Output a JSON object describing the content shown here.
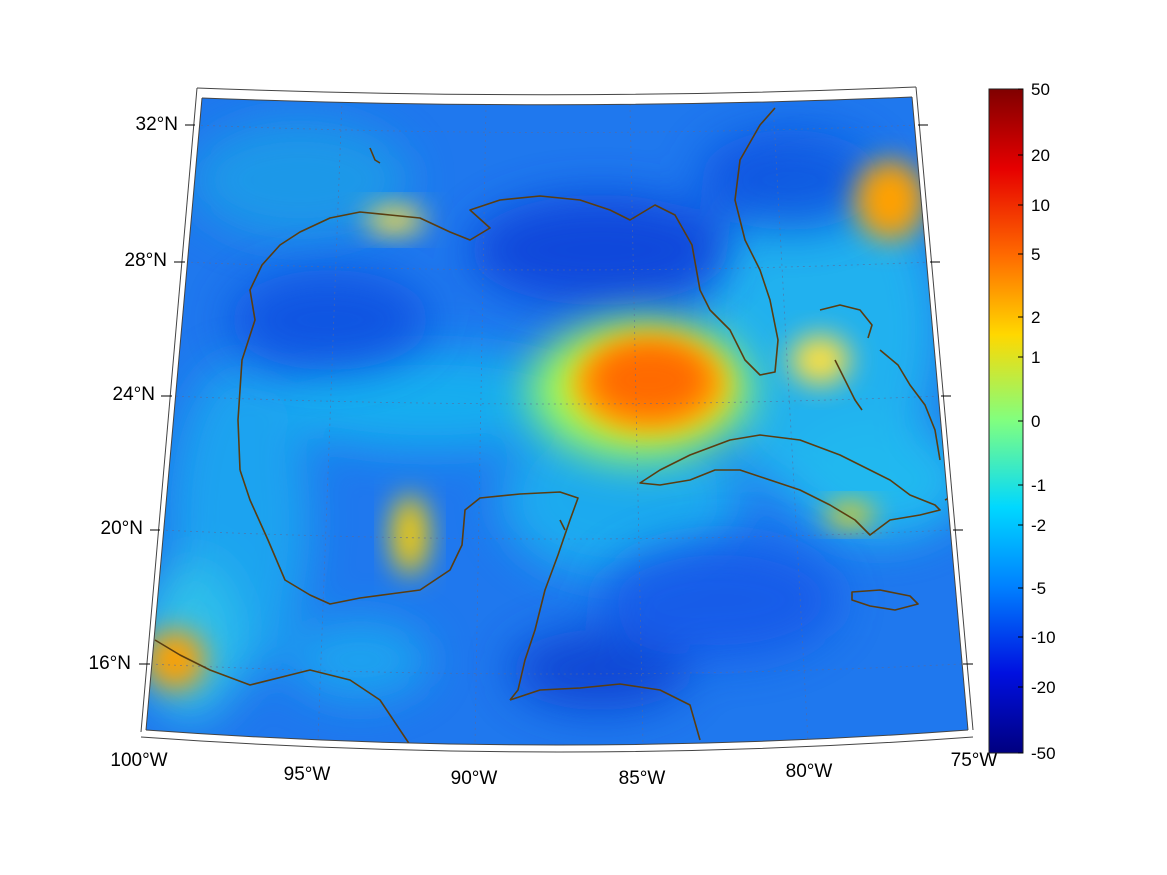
{
  "map": {
    "lat_labels": [
      "32°N",
      "28°N",
      "24°N",
      "20°N",
      "16°N"
    ],
    "lon_labels": [
      "100°W",
      "95°W",
      "90°W",
      "85°W",
      "80°W",
      "75°W"
    ],
    "extent": {
      "lon": [
        -100,
        -75
      ],
      "lat": [
        14,
        33
      ]
    },
    "projection": "lambert-conic",
    "grid": true,
    "coastline_color": "#5a3d10"
  },
  "colorbar": {
    "colormap": "jet",
    "tick_labels": [
      "50",
      "20",
      "10",
      "5",
      "2",
      "1",
      "0",
      "-1",
      "-2",
      "-5",
      "-10",
      "-20",
      "-50"
    ],
    "range": [
      -50,
      50
    ],
    "scale": "symmetric-log"
  },
  "field_features": [
    {
      "description_color": "#ff6a00",
      "lon": -85,
      "lat": 24.8
    },
    {
      "description_color": "#ffd400",
      "lon": -91.5,
      "lat": 19.8
    },
    {
      "description_color": "#ffa000",
      "lon": -76.8,
      "lat": 30.2
    },
    {
      "description_color": "#ffb000",
      "lon": -99,
      "lat": 16.2
    },
    {
      "description_color": "#1e3cd0",
      "lon": -85.5,
      "lat": 28.5
    },
    {
      "description_color": "#1e40d8",
      "lon": -83,
      "lat": 15.5
    }
  ]
}
